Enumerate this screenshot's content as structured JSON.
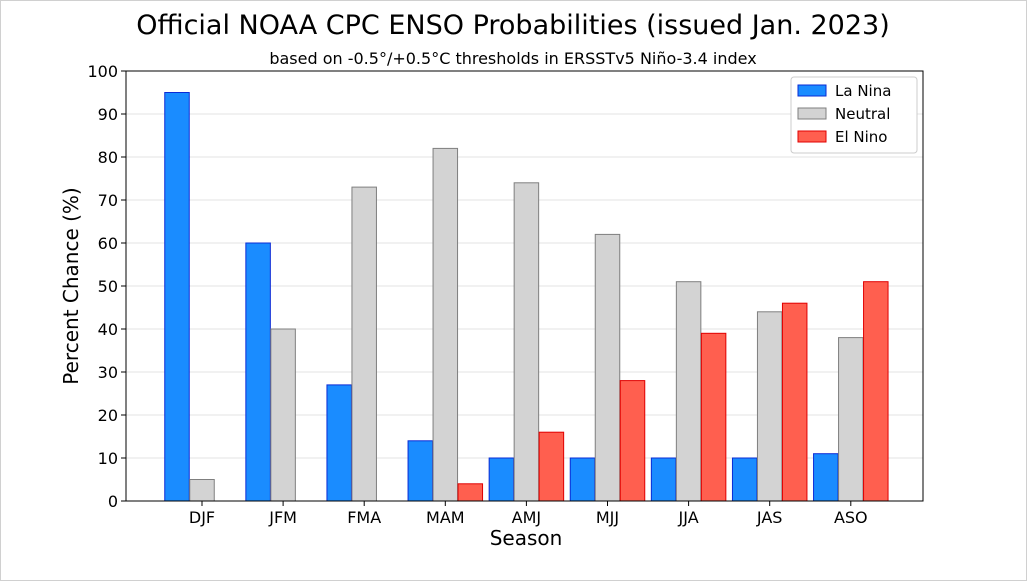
{
  "chart_data": {
    "type": "bar",
    "title": "Official NOAA CPC ENSO Probabilities (issued Jan. 2023)",
    "subtitle": "based on -0.5°/+0.5°C thresholds in ERSSTv5 Niño-3.4 index",
    "xlabel": "Season",
    "ylabel": "Percent Chance (%)",
    "ylim": [
      0,
      100
    ],
    "yticks": [
      0,
      10,
      20,
      30,
      40,
      50,
      60,
      70,
      80,
      90,
      100
    ],
    "grid": "horizontal",
    "legend_position": "top-right",
    "categories": [
      "DJF",
      "JFM",
      "FMA",
      "MAM",
      "AMJ",
      "MJJ",
      "JJA",
      "JAS",
      "ASO"
    ],
    "series": [
      {
        "name": "La Nina",
        "color": "#1a8cff",
        "edge": "#0a2bd6",
        "values": [
          95,
          60,
          27,
          14,
          10,
          10,
          10,
          10,
          11
        ]
      },
      {
        "name": "Neutral",
        "color": "#d3d3d3",
        "edge": "#7f7f7f",
        "values": [
          5,
          40,
          73,
          82,
          74,
          62,
          51,
          44,
          38
        ]
      },
      {
        "name": "El Nino",
        "color": "#ff5f4f",
        "edge": "#e00000",
        "values": [
          0,
          0,
          0,
          4,
          16,
          28,
          39,
          46,
          51
        ]
      }
    ]
  }
}
